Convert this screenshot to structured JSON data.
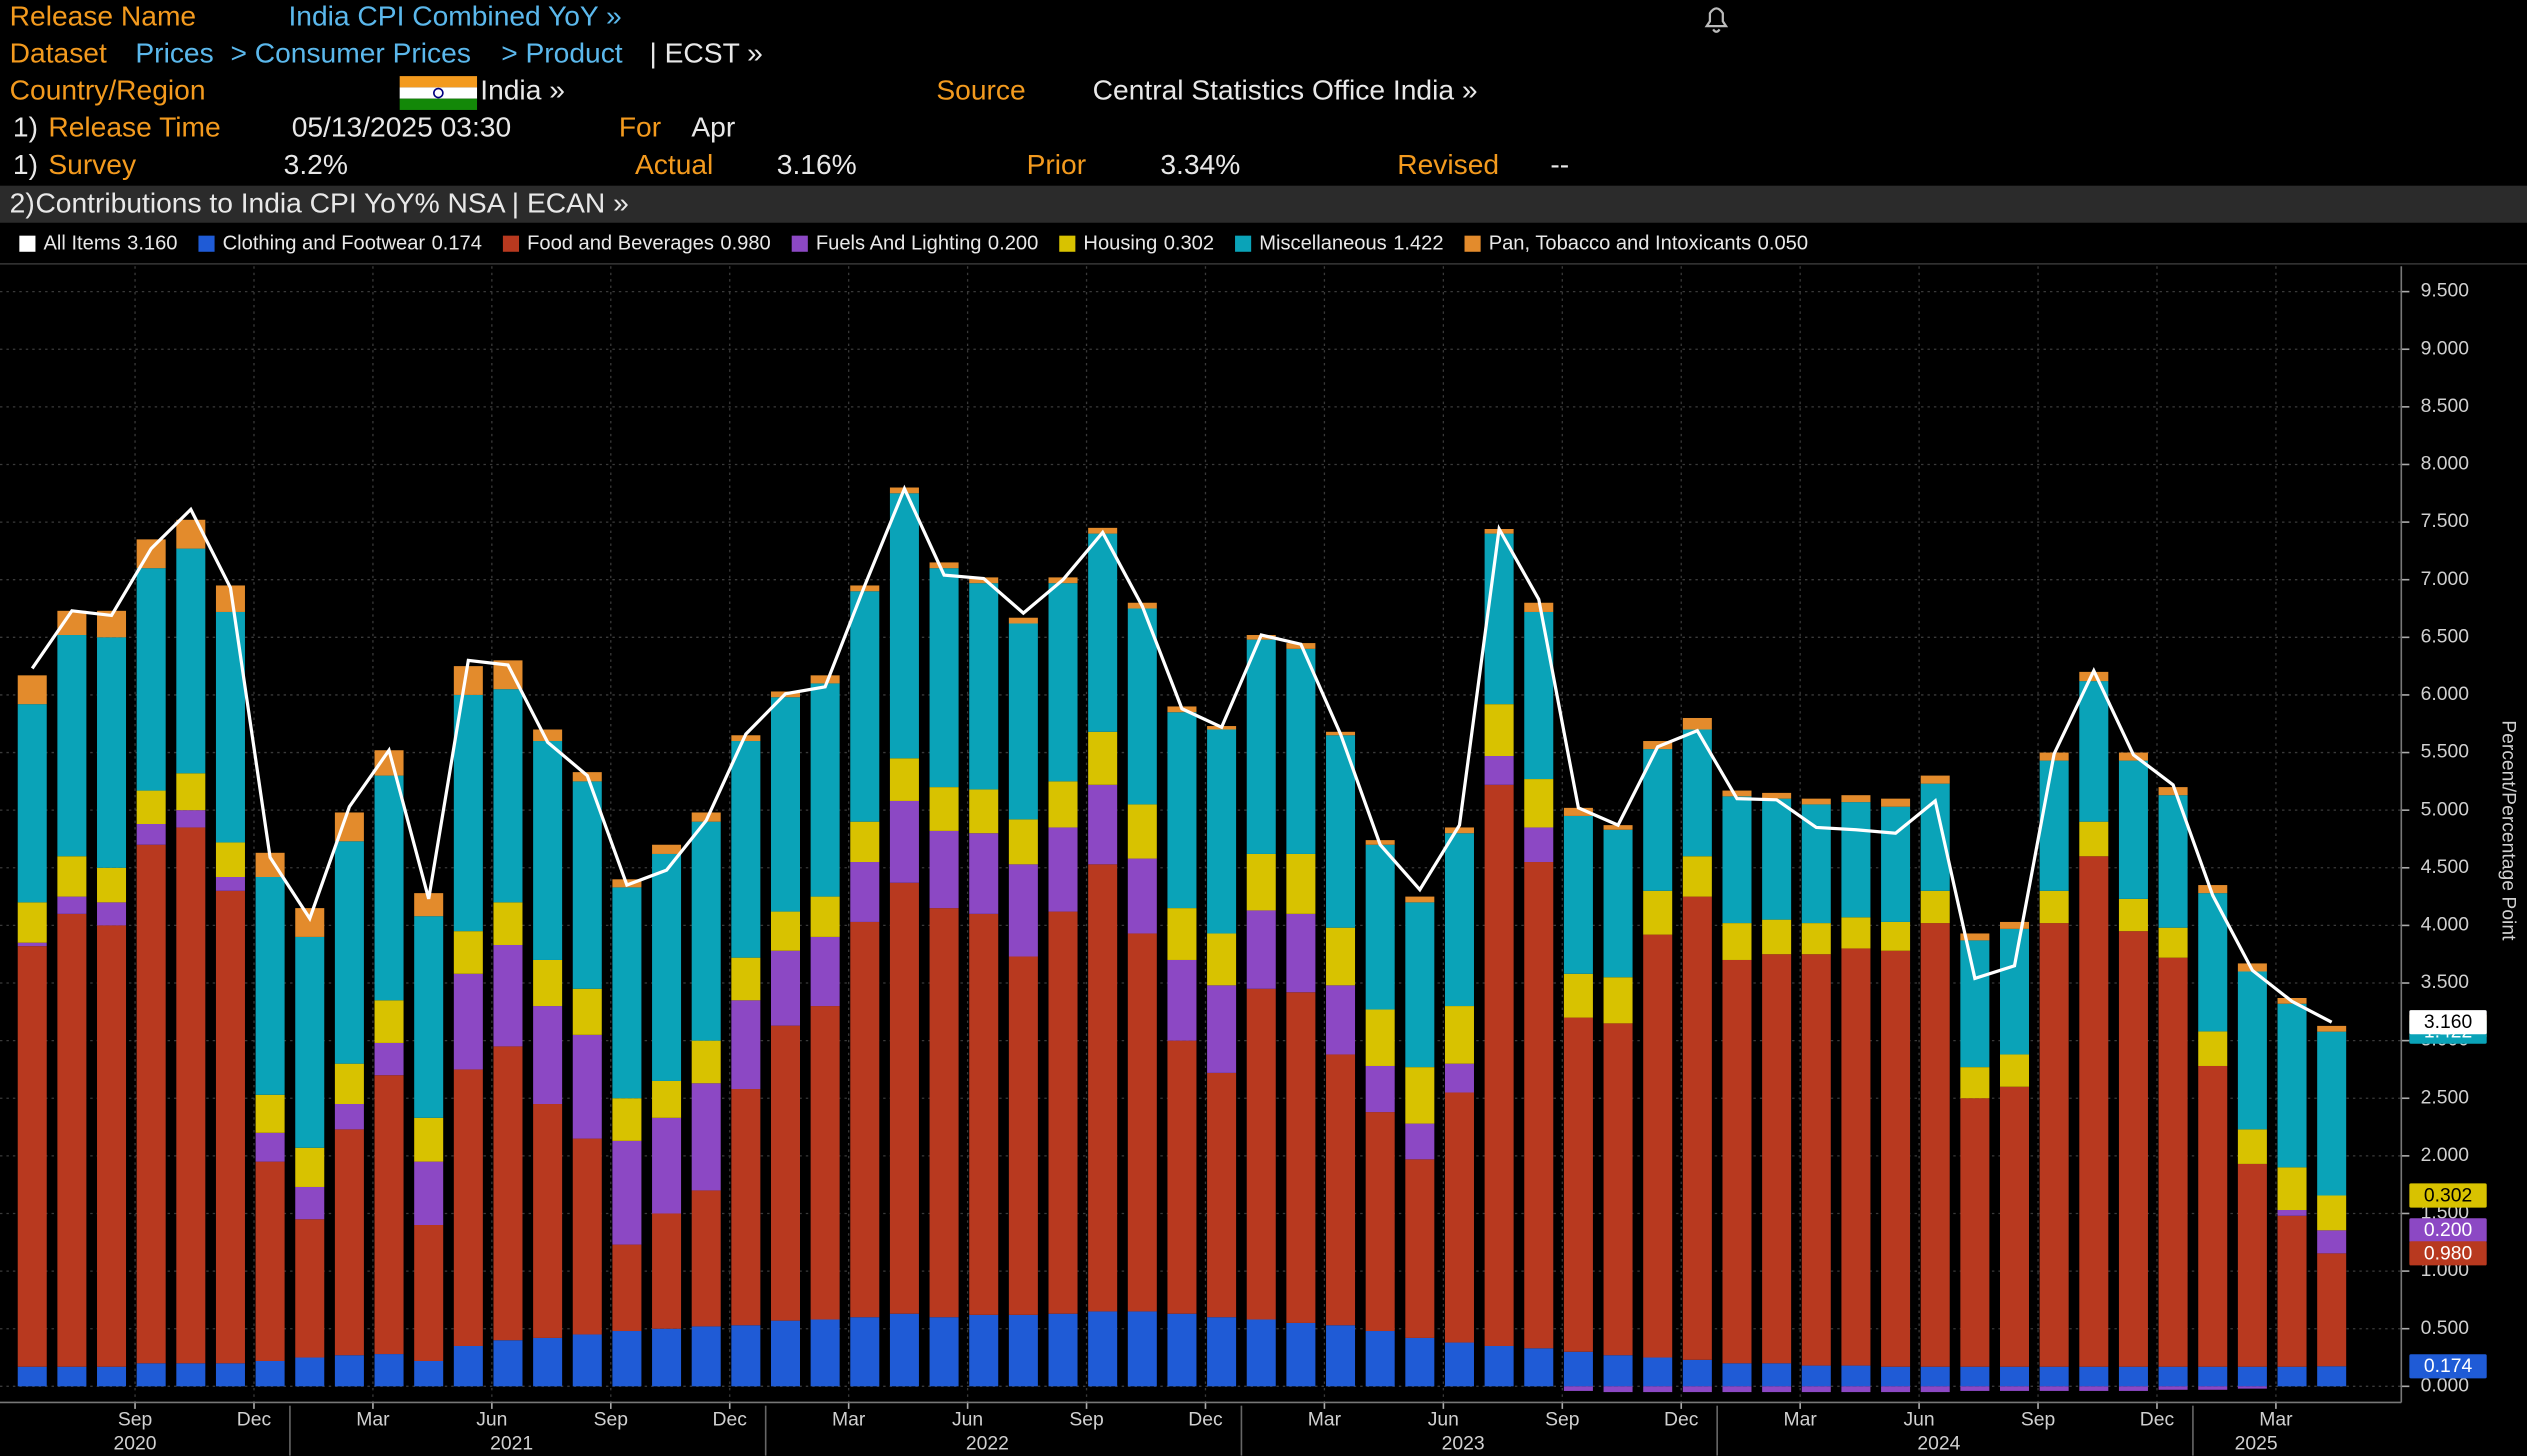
{
  "header": {
    "release_name_label": "Release Name",
    "release_name": "India CPI Combined YoY »",
    "dataset_label": "Dataset",
    "dataset_path": [
      "Prices",
      "> Consumer Prices",
      "> Product"
    ],
    "dataset_code": "| ECST »",
    "country_label": "Country/Region",
    "country": "India »",
    "source_label": "Source",
    "source": "Central Statistics Office India »",
    "release_time_index": "1)",
    "release_time_label": "Release Time",
    "release_time": "05/13/2025 03:30",
    "for_label": "For",
    "for": "Apr",
    "survey_index": "1)",
    "survey_label": "Survey",
    "survey": "3.2%",
    "actual_label": "Actual",
    "actual": "3.16%",
    "prior_label": "Prior",
    "prior": "3.34%",
    "revised_label": "Revised",
    "revised": "--"
  },
  "chart_data": {
    "type": "bar",
    "stacked": true,
    "title_index": "2)",
    "title": "Contributions to India CPI YoY% NSA | ECAN »",
    "y_axis_label": "Percent/Percentage Point",
    "grid": true,
    "categories": [
      null,
      null,
      null,
      "Sep",
      null,
      null,
      "Dec",
      null,
      null,
      "Mar",
      null,
      null,
      "Jun",
      null,
      null,
      "Sep",
      null,
      null,
      "Dec",
      null,
      null,
      "Mar",
      null,
      null,
      "Jun",
      null,
      null,
      "Sep",
      null,
      null,
      "Dec",
      null,
      null,
      "Mar",
      null,
      null,
      "Jun",
      null,
      null,
      "Sep",
      null,
      null,
      "Dec",
      null,
      null,
      "Mar",
      null,
      null,
      "Jun",
      null,
      null,
      "Sep",
      null,
      null,
      "Dec",
      null,
      null,
      "Mar",
      null
    ],
    "years": [
      "2020",
      "2021",
      "2022",
      "2023",
      "2024",
      "2025"
    ],
    "ylim": [
      -0.14,
      9.72
    ],
    "yticks": [
      {
        "value": 0,
        "label": "0.000"
      },
      {
        "value": 0.5,
        "label": "0.500"
      },
      {
        "value": 1,
        "label": "1.000"
      },
      {
        "value": 1.5,
        "label": "1.500"
      },
      {
        "value": 2,
        "label": "2.000"
      },
      {
        "value": 2.5,
        "label": "2.500"
      },
      {
        "value": 3,
        "label": "3.000"
      },
      {
        "value": 3.5,
        "label": "3.500"
      },
      {
        "value": 4,
        "label": "4.000"
      },
      {
        "value": 4.5,
        "label": "4.500"
      },
      {
        "value": 5,
        "label": "5.000"
      },
      {
        "value": 5.5,
        "label": "5.500"
      },
      {
        "value": 6,
        "label": "6.000"
      },
      {
        "value": 6.5,
        "label": "6.500"
      },
      {
        "value": 7,
        "label": "7.000"
      },
      {
        "value": 7.5,
        "label": "7.500"
      },
      {
        "value": 8,
        "label": "8.000"
      },
      {
        "value": 8.5,
        "label": "8.500"
      },
      {
        "value": 9,
        "label": "9.000"
      },
      {
        "value": 9.5,
        "label": "9.500"
      }
    ],
    "series": [
      {
        "name": "All Items",
        "type": "line",
        "color": "#ffffff",
        "values": [
          6.23,
          6.73,
          6.69,
          7.27,
          7.61,
          6.93,
          4.59,
          4.06,
          5.03,
          5.52,
          4.23,
          6.3,
          6.26,
          5.59,
          5.3,
          4.35,
          4.48,
          4.91,
          5.66,
          6.01,
          6.07,
          6.95,
          7.79,
          7.04,
          7.01,
          6.71,
          7.0,
          7.41,
          6.77,
          5.88,
          5.72,
          6.52,
          6.44,
          5.66,
          4.7,
          4.31,
          4.87,
          7.44,
          6.83,
          5.02,
          4.87,
          5.55,
          5.69,
          5.1,
          5.09,
          4.85,
          4.83,
          4.8,
          5.08,
          3.54,
          3.65,
          5.49,
          6.21,
          5.48,
          5.22,
          4.26,
          3.61,
          3.34,
          3.16
        ],
        "value_labels": [
          null,
          null,
          null,
          null,
          null,
          null,
          null,
          null,
          null,
          null,
          null,
          null,
          null,
          null,
          null,
          null,
          null,
          null,
          null,
          null,
          null,
          null,
          null,
          null,
          null,
          null,
          null,
          null,
          null,
          null,
          null,
          null,
          null,
          null,
          null,
          null,
          null,
          null,
          null,
          null,
          null,
          null,
          null,
          null,
          null,
          null,
          null,
          null,
          null,
          null,
          null,
          null,
          null,
          null,
          null,
          null,
          null,
          null,
          "3.160"
        ]
      },
      {
        "name": "Clothing and Footwear",
        "type": "bar",
        "color": "#1f5bd6",
        "values": [
          0.17,
          0.17,
          0.17,
          0.2,
          0.2,
          0.2,
          0.22,
          0.25,
          0.27,
          0.28,
          0.22,
          0.35,
          0.4,
          0.42,
          0.45,
          0.48,
          0.5,
          0.52,
          0.53,
          0.57,
          0.58,
          0.6,
          0.63,
          0.6,
          0.62,
          0.62,
          0.63,
          0.65,
          0.65,
          0.63,
          0.6,
          0.58,
          0.55,
          0.53,
          0.48,
          0.42,
          0.38,
          0.35,
          0.33,
          0.3,
          0.27,
          0.25,
          0.23,
          0.2,
          0.2,
          0.18,
          0.18,
          0.17,
          0.17,
          0.17,
          0.17,
          0.17,
          0.17,
          0.17,
          0.17,
          0.17,
          0.17,
          0.17,
          0.174
        ]
      },
      {
        "name": "Food and Beverages",
        "type": "bar",
        "color": "#b8391f",
        "values": [
          3.65,
          3.93,
          3.83,
          4.5,
          4.65,
          4.1,
          1.73,
          1.2,
          1.96,
          2.42,
          1.18,
          2.4,
          2.55,
          2.03,
          1.7,
          0.75,
          1.0,
          1.18,
          2.05,
          2.56,
          2.72,
          3.43,
          3.74,
          3.55,
          3.48,
          3.11,
          3.49,
          3.88,
          3.28,
          2.37,
          2.12,
          2.87,
          2.87,
          2.35,
          1.9,
          1.55,
          2.17,
          4.87,
          4.22,
          2.9,
          2.88,
          3.67,
          4.02,
          3.5,
          3.55,
          3.57,
          3.62,
          3.61,
          3.85,
          2.33,
          2.43,
          3.85,
          4.43,
          3.78,
          3.55,
          2.61,
          1.76,
          1.31,
          0.98
        ],
        "value_labels": [
          null,
          null,
          null,
          null,
          null,
          null,
          null,
          null,
          null,
          null,
          null,
          null,
          null,
          null,
          null,
          null,
          null,
          null,
          null,
          null,
          null,
          null,
          null,
          null,
          null,
          null,
          null,
          null,
          null,
          null,
          null,
          null,
          null,
          null,
          null,
          null,
          null,
          null,
          null,
          null,
          null,
          null,
          null,
          null,
          null,
          null,
          null,
          null,
          null,
          null,
          null,
          null,
          null,
          null,
          null,
          null,
          null,
          null,
          "0.980"
        ]
      },
      {
        "name": "Fuels And Lighting",
        "type": "bar",
        "color": "#8c48c4",
        "values": [
          0.03,
          0.15,
          0.2,
          0.18,
          0.15,
          0.12,
          0.25,
          0.28,
          0.22,
          0.28,
          0.55,
          0.83,
          0.88,
          0.85,
          0.9,
          0.9,
          0.83,
          0.93,
          0.77,
          0.65,
          0.6,
          0.52,
          0.71,
          0.67,
          0.7,
          0.8,
          0.73,
          0.69,
          0.65,
          0.7,
          0.76,
          0.68,
          0.68,
          0.6,
          0.4,
          0.31,
          0.25,
          0.25,
          0.3,
          -0.04,
          -0.05,
          -0.05,
          -0.05,
          -0.05,
          -0.05,
          -0.05,
          -0.05,
          -0.05,
          -0.05,
          -0.04,
          -0.04,
          -0.04,
          -0.04,
          -0.04,
          -0.03,
          -0.03,
          -0.02,
          0.05,
          0.2
        ],
        "value_labels": [
          null,
          null,
          null,
          null,
          null,
          null,
          null,
          null,
          null,
          null,
          null,
          null,
          null,
          null,
          null,
          null,
          null,
          null,
          null,
          null,
          null,
          null,
          null,
          null,
          null,
          null,
          null,
          null,
          null,
          null,
          null,
          null,
          null,
          null,
          null,
          null,
          null,
          null,
          null,
          null,
          null,
          null,
          null,
          null,
          null,
          null,
          null,
          null,
          null,
          null,
          null,
          null,
          null,
          null,
          null,
          null,
          null,
          null,
          "0.200"
        ]
      },
      {
        "name": "Housing",
        "type": "bar",
        "color": "#d8c200",
        "values": [
          0.35,
          0.35,
          0.3,
          0.29,
          0.32,
          0.3,
          0.33,
          0.34,
          0.35,
          0.37,
          0.38,
          0.37,
          0.37,
          0.4,
          0.4,
          0.37,
          0.32,
          0.37,
          0.37,
          0.34,
          0.35,
          0.35,
          0.37,
          0.38,
          0.38,
          0.39,
          0.4,
          0.46,
          0.47,
          0.45,
          0.45,
          0.49,
          0.52,
          0.5,
          0.49,
          0.49,
          0.5,
          0.45,
          0.42,
          0.38,
          0.4,
          0.38,
          0.35,
          0.32,
          0.3,
          0.27,
          0.27,
          0.25,
          0.28,
          0.27,
          0.28,
          0.28,
          0.3,
          0.28,
          0.26,
          0.3,
          0.3,
          0.37,
          0.302
        ]
      },
      {
        "name": "Miscellaneous",
        "type": "bar",
        "color": "#0aa3b8",
        "values": [
          1.72,
          1.92,
          2.0,
          1.93,
          1.95,
          2.0,
          1.89,
          1.83,
          1.93,
          1.95,
          1.75,
          2.05,
          1.85,
          1.9,
          1.8,
          1.83,
          1.97,
          1.9,
          1.88,
          1.86,
          1.85,
          2.0,
          2.3,
          1.9,
          1.79,
          1.7,
          1.72,
          1.72,
          1.7,
          1.7,
          1.77,
          1.86,
          1.78,
          1.67,
          1.43,
          1.43,
          1.5,
          1.48,
          1.45,
          1.37,
          1.28,
          1.23,
          1.1,
          1.1,
          1.05,
          1.03,
          1.0,
          1.0,
          0.93,
          1.1,
          1.09,
          1.13,
          1.22,
          1.2,
          1.15,
          1.2,
          1.37,
          1.42,
          1.422
        ]
      },
      {
        "name": "Pan, Tobacco and Intoxicants",
        "type": "bar",
        "color": "#e38b2c",
        "values": [
          0.25,
          0.21,
          0.23,
          0.25,
          0.25,
          0.23,
          0.21,
          0.25,
          0.25,
          0.22,
          0.2,
          0.25,
          0.25,
          0.1,
          0.08,
          0.07,
          0.08,
          0.08,
          0.05,
          0.05,
          0.07,
          0.05,
          0.05,
          0.05,
          0.05,
          0.05,
          0.05,
          0.05,
          0.05,
          0.05,
          0.03,
          0.04,
          0.05,
          0.03,
          0.04,
          0.05,
          0.05,
          0.04,
          0.08,
          0.07,
          0.04,
          0.07,
          0.1,
          0.05,
          0.05,
          0.05,
          0.06,
          0.07,
          0.07,
          0.06,
          0.06,
          0.07,
          0.08,
          0.07,
          0.07,
          0.07,
          0.07,
          0.05,
          0.05
        ],
        "value_labels": [
          null,
          null,
          null,
          null,
          null,
          null,
          null,
          null,
          null,
          null,
          null,
          null,
          null,
          null,
          null,
          null,
          null,
          null,
          null,
          null,
          null,
          null,
          null,
          null,
          null,
          null,
          null,
          null,
          null,
          null,
          null,
          null,
          null,
          null,
          null,
          null,
          null,
          null,
          null,
          null,
          null,
          null,
          null,
          null,
          null,
          null,
          null,
          null,
          null,
          null,
          null,
          null,
          null,
          null,
          null,
          null,
          null,
          null,
          "0.050"
        ]
      }
    ]
  }
}
